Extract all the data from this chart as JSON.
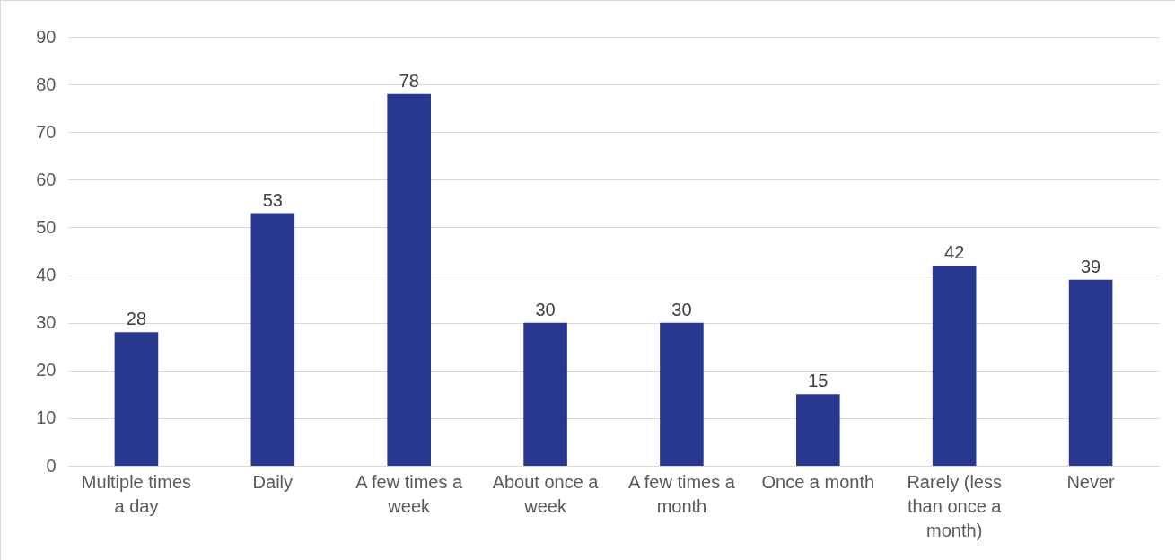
{
  "chart_data": {
    "type": "bar",
    "categories": [
      "Multiple times a day",
      "Daily",
      "A few times a week",
      "About once a week",
      "A few times a month",
      "Once a month",
      "Rarely (less than once a month)",
      "Never"
    ],
    "values": [
      28,
      53,
      78,
      30,
      30,
      15,
      42,
      39
    ],
    "color": "#283891",
    "ylim": [
      0,
      90
    ],
    "yticks": [
      0,
      10,
      20,
      30,
      40,
      50,
      60,
      70,
      80,
      90
    ],
    "grid": "y",
    "data_labels": true
  }
}
